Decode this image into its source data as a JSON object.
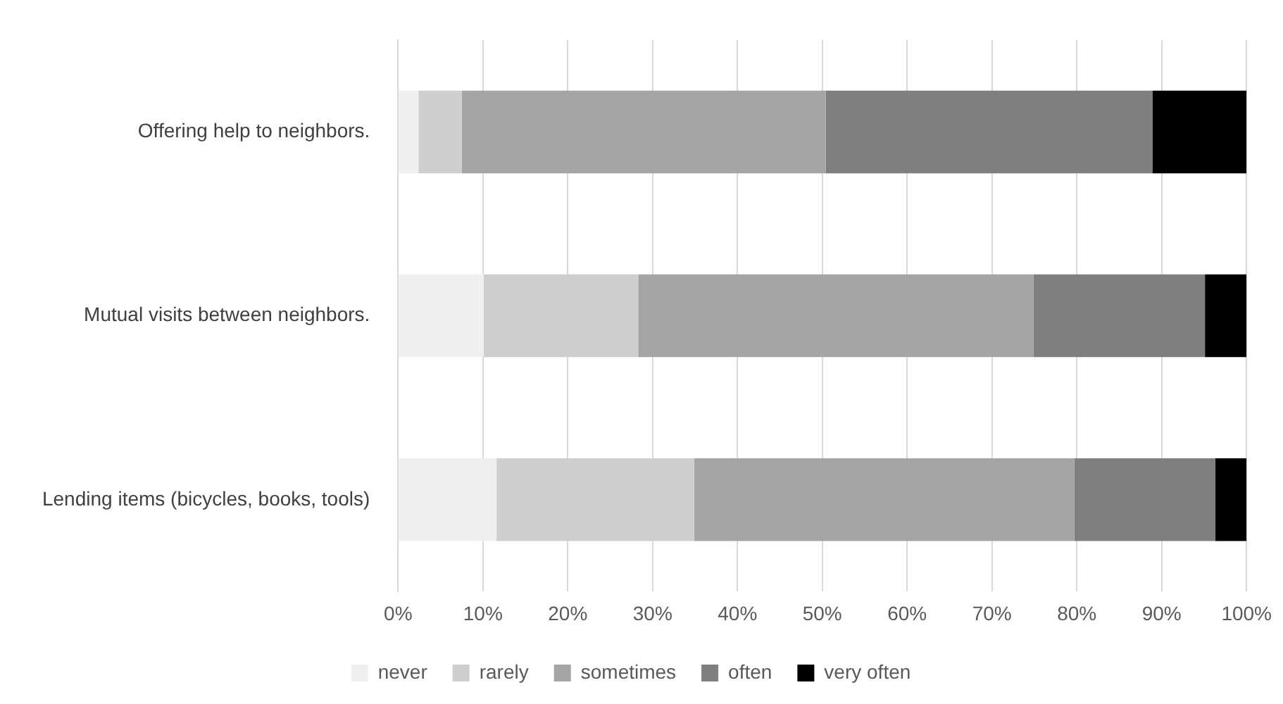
{
  "chart_data": {
    "type": "bar",
    "orientation": "horizontal",
    "stacked": true,
    "categories": [
      "Offering help to neighbors.",
      "Mutual visits between neighbors.",
      "Lending items (bicycles, books, tools)"
    ],
    "series": [
      {
        "name": "never",
        "color": "#f0f0f0",
        "values": [
          2.4,
          10.1,
          11.6
        ]
      },
      {
        "name": "rarely",
        "color": "#d0cfd0",
        "values": [
          5.1,
          18.2,
          23.3
        ]
      },
      {
        "name": "sometimes",
        "color": "#a5a5a5",
        "values": [
          42.9,
          46.6,
          44.8
        ]
      },
      {
        "name": "often",
        "color": "#7f7f7f",
        "values": [
          38.5,
          20.2,
          16.6
        ]
      },
      {
        "name": "very often",
        "color": "#000000",
        "values": [
          11.1,
          4.9,
          3.7
        ]
      }
    ],
    "xlim": [
      0,
      100
    ],
    "xticks": [
      {
        "value": 0,
        "label": "0%"
      },
      {
        "value": 10,
        "label": "10%"
      },
      {
        "value": 20,
        "label": "20%"
      },
      {
        "value": 30,
        "label": "30%"
      },
      {
        "value": 40,
        "label": "40%"
      },
      {
        "value": 50,
        "label": "50%"
      },
      {
        "value": 60,
        "label": "60%"
      },
      {
        "value": 70,
        "label": "70%"
      },
      {
        "value": 80,
        "label": "80%"
      },
      {
        "value": 90,
        "label": "90%"
      },
      {
        "value": 100,
        "label": "100%"
      }
    ],
    "grid": "x",
    "legend": "bottom"
  }
}
